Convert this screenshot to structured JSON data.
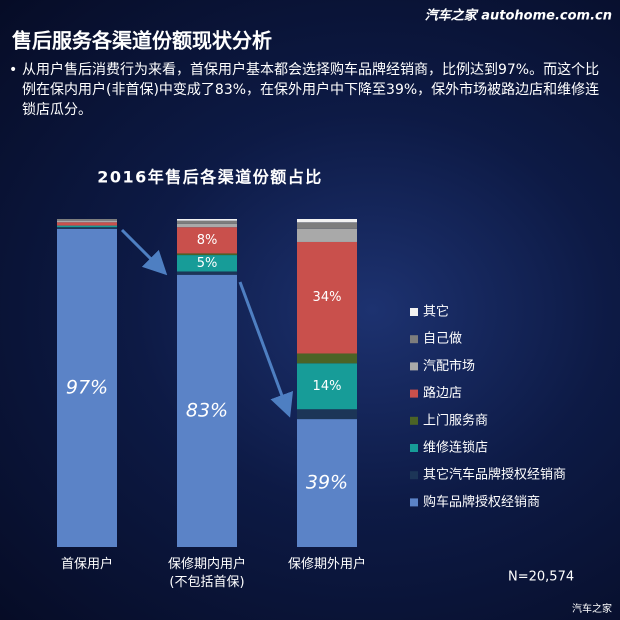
{
  "header": {
    "title": "售后服务各渠道份额现状分析",
    "watermark": "汽车之家 autohome.com.cn",
    "bullet": "从用户售后消费行为来看，首保用户基本都会选择购车品牌经销商，比例达到97%。而这个比例在保内用户(非首保)中变成了83%，在保外用户中下降至39%，保外市场被路边店和维修连锁店瓜分。"
  },
  "chart_data": {
    "type": "stacked_bar",
    "title": "2016年售后各渠道份额占比",
    "categories": [
      "首保用户",
      "保修期内用户\n(不包括首保)",
      "保修期外用户"
    ],
    "series": [
      {
        "name": "购车品牌授权经销商",
        "color": "#5b83c7",
        "values": [
          97,
          83,
          39
        ],
        "value_labels": [
          "97%",
          "83%",
          "39%"
        ]
      },
      {
        "name": "其它汽车品牌授权经销商",
        "color": "#1c3557",
        "values": [
          0.5,
          1,
          3
        ]
      },
      {
        "name": "维修连锁店",
        "color": "#179c98",
        "values": [
          0.5,
          5,
          14
        ],
        "value_labels": [
          null,
          "5%",
          "14%"
        ]
      },
      {
        "name": "上门服务商",
        "color": "#4b6326",
        "values": [
          0,
          0.5,
          3
        ]
      },
      {
        "name": "路边店",
        "color": "#c9504c",
        "values": [
          1,
          8,
          34
        ],
        "value_labels": [
          null,
          "8%",
          "34%"
        ]
      },
      {
        "name": "汽配市场",
        "color": "#a9a9a9",
        "values": [
          0.5,
          1,
          4
        ]
      },
      {
        "name": "自己做",
        "color": "#7d7d7d",
        "values": [
          0.5,
          1,
          2
        ]
      },
      {
        "name": "其它",
        "color": "#f2f2f2",
        "values": [
          0,
          0.5,
          1
        ]
      }
    ],
    "note": "N=20,574"
  },
  "footer": {
    "logo": "汽车之家"
  }
}
